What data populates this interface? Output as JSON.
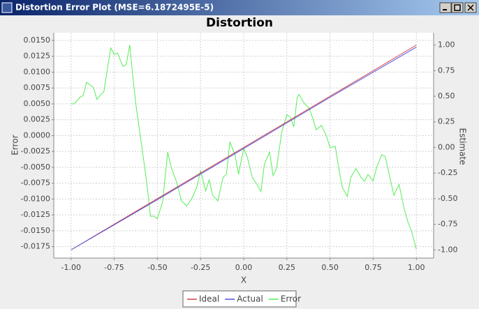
{
  "window_title": "Distortion Error Plot (MSE=6.1872495E-5)",
  "chart_data": {
    "type": "line",
    "title": "Distortion",
    "x_label": "X",
    "y_label": "Error",
    "y2_label": "Estimate",
    "xlim": [
      -1.1,
      1.1
    ],
    "ylim": [
      -0.0193,
      0.0162
    ],
    "y2lim": [
      -1.08,
      1.12
    ],
    "grid": true,
    "legend": "bottom",
    "xticks": [
      {
        "value": -1,
        "label": "-1.00"
      },
      {
        "value": -0.75,
        "label": "-0.75"
      },
      {
        "value": -0.5,
        "label": "-0.50"
      },
      {
        "value": -0.25,
        "label": "-0.25"
      },
      {
        "value": 0,
        "label": "0.00"
      },
      {
        "value": 0.25,
        "label": "0.25"
      },
      {
        "value": 0.5,
        "label": "0.50"
      },
      {
        "value": 0.75,
        "label": "0.75"
      },
      {
        "value": 1,
        "label": "1.00"
      }
    ],
    "yticks": [
      {
        "value": -0.0175,
        "label": "-0.0175"
      },
      {
        "value": -0.015,
        "label": "-0.0150"
      },
      {
        "value": -0.0125,
        "label": "-0.0125"
      },
      {
        "value": -0.01,
        "label": "-0.0100"
      },
      {
        "value": -0.0075,
        "label": "-0.0075"
      },
      {
        "value": -0.005,
        "label": "-0.0050"
      },
      {
        "value": -0.0025,
        "label": "-0.0025"
      },
      {
        "value": 0,
        "label": "0.0000"
      },
      {
        "value": 0.0025,
        "label": "0.0025"
      },
      {
        "value": 0.005,
        "label": "0.0050"
      },
      {
        "value": 0.0075,
        "label": "0.0075"
      },
      {
        "value": 0.01,
        "label": "0.0100"
      },
      {
        "value": 0.0125,
        "label": "0.0125"
      },
      {
        "value": 0.015,
        "label": "0.0150"
      }
    ],
    "y2ticks": [
      {
        "value": -1,
        "label": "-1.00"
      },
      {
        "value": -0.75,
        "label": "-0.75"
      },
      {
        "value": -0.5,
        "label": "-0.50"
      },
      {
        "value": -0.25,
        "label": "-0.25"
      },
      {
        "value": 0,
        "label": "0.00"
      },
      {
        "value": 0.25,
        "label": "0.25"
      },
      {
        "value": 0.5,
        "label": "0.50"
      },
      {
        "value": 0.75,
        "label": "0.75"
      },
      {
        "value": 1,
        "label": "1.00"
      }
    ],
    "series": [
      {
        "name": "Ideal",
        "color": "#d04040",
        "axis": "y2",
        "x": [
          -1,
          1
        ],
        "values": [
          -1,
          1
        ]
      },
      {
        "name": "Actual",
        "color": "#5050e0",
        "axis": "y2",
        "x": [
          -1,
          -0.5,
          0,
          0.5,
          1
        ],
        "values": [
          -1,
          -0.51,
          -0.01,
          0.49,
          0.98
        ]
      },
      {
        "name": "Error",
        "color": "#55ee55",
        "x": [
          -1,
          -0.98,
          -0.95,
          -0.93,
          -0.91,
          -0.87,
          -0.85,
          -0.83,
          -0.81,
          -0.79,
          -0.77,
          -0.75,
          -0.73,
          -0.7,
          -0.68,
          -0.66,
          -0.64,
          -0.62,
          -0.58,
          -0.56,
          -0.54,
          -0.52,
          -0.5,
          -0.47,
          -0.44,
          -0.42,
          -0.39,
          -0.36,
          -0.33,
          -0.3,
          -0.27,
          -0.25,
          -0.22,
          -0.2,
          -0.18,
          -0.15,
          -0.12,
          -0.1,
          -0.08,
          -0.05,
          -0.03,
          0,
          0.02,
          0.05,
          0.07,
          0.1,
          0.12,
          0.15,
          0.17,
          0.19,
          0.22,
          0.25,
          0.27,
          0.29,
          0.31,
          0.32,
          0.35,
          0.38,
          0.4,
          0.42,
          0.45,
          0.48,
          0.5,
          0.53,
          0.55,
          0.57,
          0.6,
          0.62,
          0.65,
          0.68,
          0.7,
          0.72,
          0.75,
          0.77,
          0.8,
          0.82,
          0.85,
          0.87,
          0.9,
          0.93,
          0.95,
          0.97,
          1
        ],
        "values": [
          0.005,
          0.005,
          0.006,
          0.0063,
          0.0084,
          0.0076,
          0.0057,
          0.0064,
          0.0069,
          0.0104,
          0.0138,
          0.0128,
          0.013,
          0.0109,
          0.0112,
          0.0143,
          0.0087,
          0.004,
          -0.0037,
          -0.0077,
          -0.0127,
          -0.0127,
          -0.0131,
          -0.0105,
          -0.0026,
          -0.005,
          -0.0072,
          -0.0103,
          -0.0111,
          -0.0099,
          -0.008,
          -0.0055,
          -0.0087,
          -0.007,
          -0.0094,
          -0.0103,
          -0.0066,
          -0.0061,
          -0.001,
          -0.003,
          -0.0061,
          -0.002,
          -0.0033,
          -0.0066,
          -0.0074,
          -0.0088,
          -0.0045,
          -0.0026,
          -0.0063,
          -0.0052,
          0.0005,
          0.0033,
          0.0029,
          0.0014,
          0.006,
          0.0065,
          0.0051,
          0.0043,
          0.0027,
          0.0009,
          0.0016,
          -0.0001,
          -0.0019,
          -0.0017,
          -0.005,
          -0.0081,
          -0.0096,
          -0.0066,
          -0.0052,
          -0.0066,
          -0.0072,
          -0.0061,
          -0.0072,
          -0.005,
          -0.003,
          -0.0033,
          -0.007,
          -0.0094,
          -0.0077,
          -0.0116,
          -0.0135,
          -0.0149,
          -0.0179
        ]
      }
    ]
  }
}
